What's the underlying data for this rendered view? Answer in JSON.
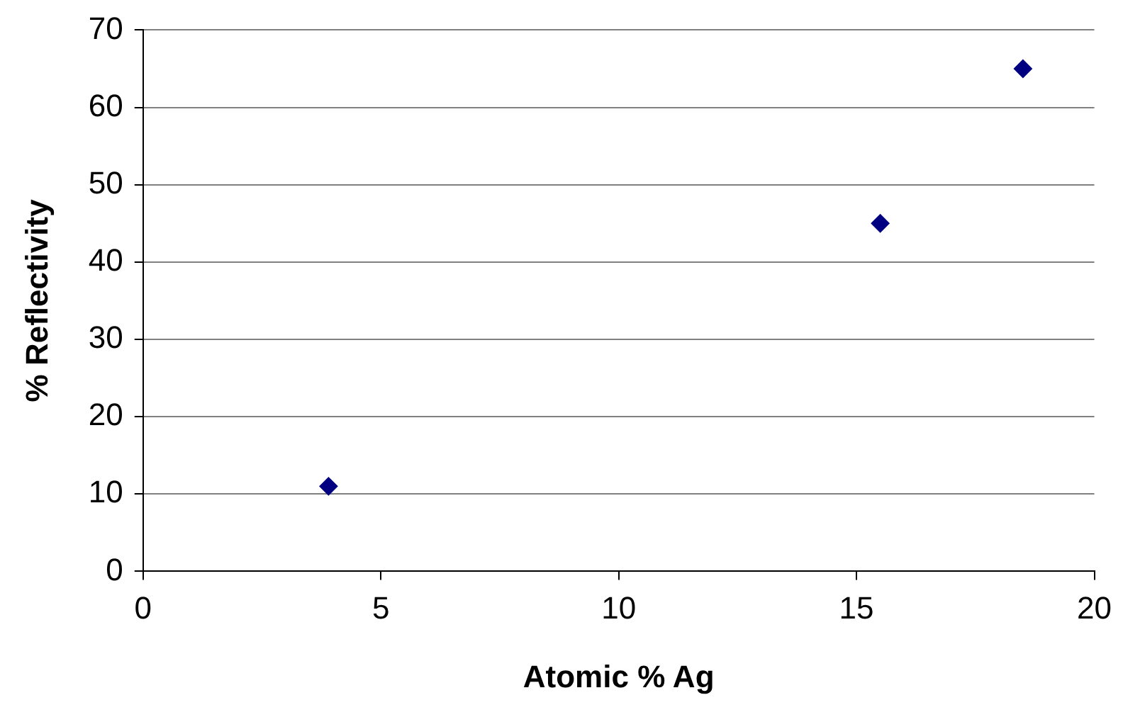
{
  "chart_data": {
    "type": "scatter",
    "xlabel": "Atomic % Ag",
    "ylabel": "% Reflectivity",
    "x": [
      3.9,
      15.5,
      18.5
    ],
    "series": [
      {
        "color": "#000080",
        "values": [
          11,
          45,
          65
        ]
      }
    ],
    "xlim": [
      0,
      20
    ],
    "xticks": [
      0,
      5,
      10,
      15,
      20
    ],
    "ylim": [
      0,
      70
    ],
    "yticks": [
      0,
      10,
      20,
      30,
      40,
      50,
      60,
      70
    ],
    "grid": "y",
    "legend": false,
    "marker": "diamond"
  }
}
